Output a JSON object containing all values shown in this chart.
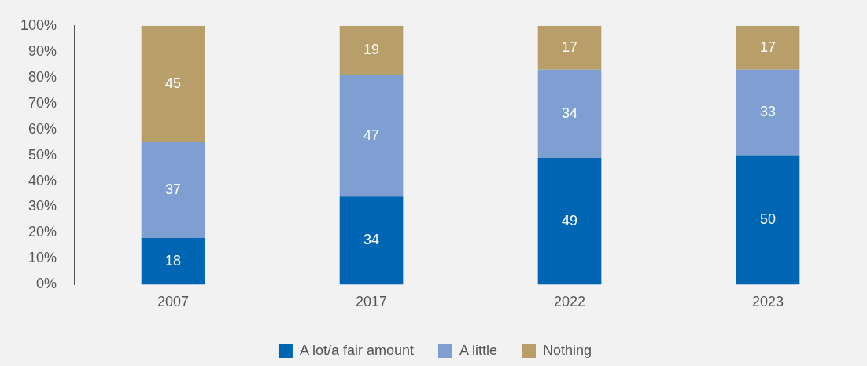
{
  "chart_data": {
    "type": "bar",
    "stacked": true,
    "categories": [
      "2007",
      "2017",
      "2022",
      "2023"
    ],
    "series": [
      {
        "name": "A lot/a fair amount",
        "color": "#0065b3",
        "values": [
          18,
          34,
          49,
          50
        ]
      },
      {
        "name": "A little",
        "color": "#7f9fd3",
        "values": [
          37,
          47,
          34,
          33
        ]
      },
      {
        "name": "Nothing",
        "color": "#b89f69",
        "values": [
          45,
          19,
          17,
          17
        ]
      }
    ],
    "ylim": [
      0,
      100
    ],
    "yticks": [
      {
        "value": 0,
        "label": "0%"
      },
      {
        "value": 10,
        "label": "10%"
      },
      {
        "value": 20,
        "label": "20%"
      },
      {
        "value": 30,
        "label": "30%"
      },
      {
        "value": 40,
        "label": "40%"
      },
      {
        "value": 50,
        "label": "50%"
      },
      {
        "value": 60,
        "label": "60%"
      },
      {
        "value": 70,
        "label": "70%"
      },
      {
        "value": 80,
        "label": "80%"
      },
      {
        "value": 90,
        "label": "90%"
      },
      {
        "value": 100,
        "label": "100%"
      }
    ],
    "grid": false,
    "legend": "bottom",
    "data_labels": true
  }
}
